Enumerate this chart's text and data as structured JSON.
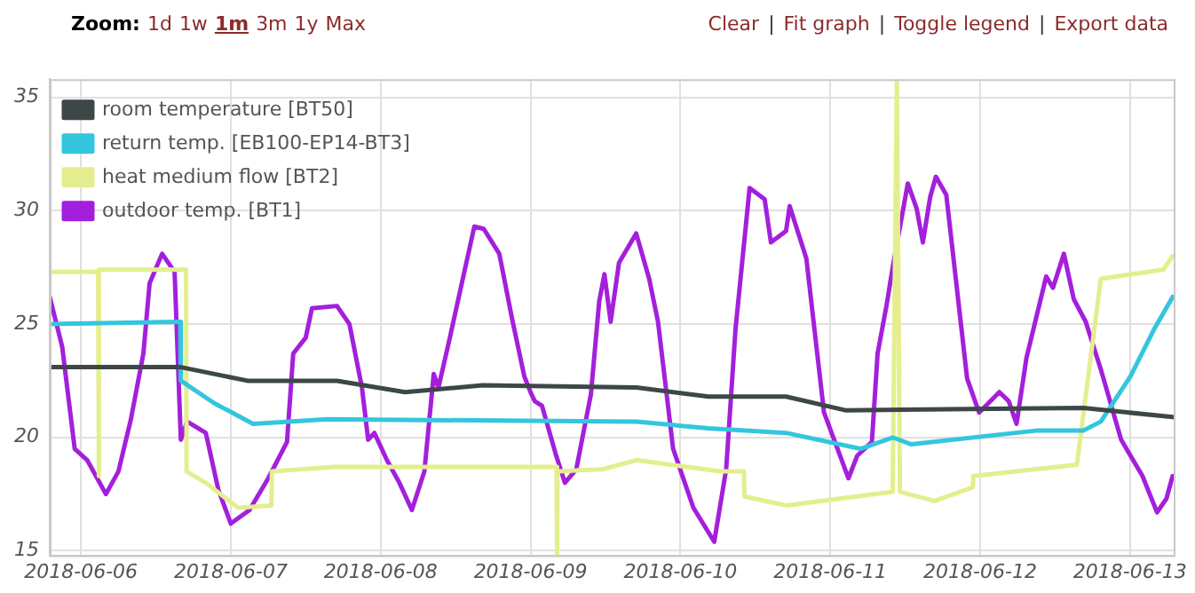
{
  "chart_data": {
    "type": "line",
    "annotations": [
      "Zoom:",
      "1d",
      "1w",
      "1m",
      "3m",
      "1y",
      "Max",
      "Clear",
      "|",
      "Fit graph",
      "|",
      "Toggle legend",
      "|",
      "Export data"
    ],
    "xlim": [
      "2018-06-05T19:00",
      "2018-06-13T07:00"
    ],
    "xticks": [
      "2018-06-06",
      "2018-06-07",
      "2018-06-08",
      "2018-06-09",
      "2018-06-10",
      "2018-06-11",
      "2018-06-12",
      "2018-06-13"
    ],
    "ylim": [
      14.8,
      35.8
    ],
    "yticks": [
      15,
      20,
      25,
      30,
      35
    ],
    "grid": true,
    "legend": "top left",
    "marker": "none",
    "line_style": "solid",
    "series": [
      {
        "name": "room temperature [BT50]",
        "color": "#3d4747",
        "x": [
          "2018-06-05T19:00",
          "2018-06-06T16:00",
          "2018-06-07T02:40",
          "2018-06-07T17:00",
          "2018-06-08T03:55",
          "2018-06-08T16:20",
          "2018-06-09T17:00",
          "2018-06-10T04:30",
          "2018-06-10T16:55",
          "2018-06-11T02:25",
          "2018-06-12T16:30",
          "2018-06-13T06:50"
        ],
        "values": [
          23.1,
          23.1,
          22.5,
          22.5,
          22.0,
          22.3,
          22.2,
          21.8,
          21.8,
          21.2,
          21.3,
          20.9
        ]
      },
      {
        "name": "return temp. [EB100-EP14-BT3]",
        "color": "#33c6dd",
        "x": [
          "2018-06-05T19:00",
          "2018-06-06T15:55",
          "2018-06-06T16:00",
          "2018-06-06T21:25",
          "2018-06-07T03:35",
          "2018-06-07T15:30",
          "2018-06-09T17:00",
          "2018-06-10T04:30",
          "2018-06-10T16:55",
          "2018-06-11T04:50",
          "2018-06-11T10:00",
          "2018-06-11T12:55",
          "2018-06-12T08:55",
          "2018-06-12T16:30",
          "2018-06-12T19:20",
          "2018-06-13T00:05",
          "2018-06-13T03:55",
          "2018-06-13T06:50"
        ],
        "values": [
          25.0,
          25.1,
          22.5,
          21.5,
          20.6,
          20.8,
          20.7,
          20.4,
          20.2,
          19.5,
          20.0,
          19.7,
          20.3,
          20.3,
          20.7,
          22.7,
          24.8,
          26.2
        ]
      },
      {
        "name": "heat medium flow [BT2]",
        "color": "#e4ee8e",
        "x": [
          "2018-06-05T19:00",
          "2018-06-06T02:45",
          "2018-06-06T02:50",
          "2018-06-06T02:55",
          "2018-06-06T16:50",
          "2018-06-06T16:55",
          "2018-06-06T20:00",
          "2018-06-07T01:10",
          "2018-06-07T06:30",
          "2018-06-07T06:35",
          "2018-06-07T16:30",
          "2018-06-09T04:10",
          "2018-06-09T04:15",
          "2018-06-09T04:20",
          "2018-06-09T11:35",
          "2018-06-09T17:00",
          "2018-06-10T06:25",
          "2018-06-10T10:10",
          "2018-06-10T10:15",
          "2018-06-10T16:55",
          "2018-06-11T10:00",
          "2018-06-11T10:40",
          "2018-06-11T11:10",
          "2018-06-11T16:40",
          "2018-06-11T22:50",
          "2018-06-11T22:55",
          "2018-06-12T15:30",
          "2018-06-12T19:20",
          "2018-06-13T05:20",
          "2018-06-13T06:50"
        ],
        "values": [
          27.3,
          27.3,
          18.3,
          27.4,
          27.4,
          18.5,
          18.0,
          16.9,
          17.0,
          18.5,
          18.7,
          18.7,
          14.8,
          18.5,
          18.6,
          19.0,
          18.5,
          18.5,
          17.4,
          17.0,
          17.6,
          35.8,
          17.6,
          17.2,
          17.8,
          18.3,
          18.8,
          27.0,
          27.4,
          28.0
        ]
      },
      {
        "name": "outdoor temp. [BT1]",
        "color": "#a41fdc",
        "x": [
          "2018-06-05T19:00",
          "2018-06-05T21:00",
          "2018-06-05T23:00",
          "2018-06-06T01:00",
          "2018-06-06T04:00",
          "2018-06-06T06:00",
          "2018-06-06T08:00",
          "2018-06-06T10:00",
          "2018-06-06T11:00",
          "2018-06-06T13:00",
          "2018-06-06T15:00",
          "2018-06-06T16:00",
          "2018-06-06T17:00",
          "2018-06-06T20:00",
          "2018-06-06T22:00",
          "2018-06-07T00:00",
          "2018-06-07T03:00",
          "2018-06-07T06:00",
          "2018-06-07T09:00",
          "2018-06-07T10:00",
          "2018-06-07T12:00",
          "2018-06-07T13:00",
          "2018-06-07T17:00",
          "2018-06-07T19:00",
          "2018-06-07T21:00",
          "2018-06-07T22:00",
          "2018-06-07T23:00",
          "2018-06-08T01:00",
          "2018-06-08T03:00",
          "2018-06-08T05:00",
          "2018-06-08T07:00",
          "2018-06-08T08:30",
          "2018-06-08T09:15",
          "2018-06-08T11:00",
          "2018-06-08T13:00",
          "2018-06-08T15:00",
          "2018-06-08T16:30",
          "2018-06-08T19:00",
          "2018-06-08T21:00",
          "2018-06-08T23:00",
          "2018-06-09T00:00",
          "2018-06-09T00:40",
          "2018-06-09T01:50",
          "2018-06-09T04:00",
          "2018-06-09T05:30",
          "2018-06-09T07:20",
          "2018-06-09T09:40",
          "2018-06-09T11:00",
          "2018-06-09T11:50",
          "2018-06-09T12:50",
          "2018-06-09T14:10",
          "2018-06-09T16:55",
          "2018-06-09T19:00",
          "2018-06-09T20:25",
          "2018-06-09T22:50",
          "2018-06-10T02:05",
          "2018-06-10T05:25",
          "2018-06-10T07:20",
          "2018-06-10T08:50",
          "2018-06-10T11:05",
          "2018-06-10T13:30",
          "2018-06-10T14:30",
          "2018-06-10T16:55",
          "2018-06-10T17:30",
          "2018-06-10T20:10",
          "2018-06-10T23:00",
          "2018-06-11T02:55",
          "2018-06-11T04:20",
          "2018-06-11T06:40",
          "2018-06-11T07:35",
          "2018-06-11T09:00",
          "2018-06-11T10:00",
          "2018-06-11T12:25",
          "2018-06-11T13:50",
          "2018-06-11T14:50",
          "2018-06-11T16:00",
          "2018-06-11T16:55",
          "2018-06-11T18:35",
          "2018-06-11T21:55",
          "2018-06-11T23:50",
          "2018-06-12T03:05",
          "2018-06-12T04:35",
          "2018-06-12T05:50",
          "2018-06-12T07:25",
          "2018-06-12T10:35",
          "2018-06-12T11:40",
          "2018-06-12T13:25",
          "2018-06-12T15:00",
          "2018-06-12T16:55",
          "2018-06-12T19:20",
          "2018-06-12T22:35",
          "2018-06-13T02:00",
          "2018-06-13T04:20",
          "2018-06-13T05:50",
          "2018-06-13T06:50"
        ],
        "values": [
          26.2,
          24.0,
          19.5,
          19.0,
          17.5,
          18.5,
          20.8,
          23.7,
          26.8,
          28.1,
          27.3,
          19.9,
          20.7,
          20.2,
          17.7,
          16.2,
          16.8,
          18.2,
          19.8,
          23.7,
          24.4,
          25.7,
          25.8,
          25.0,
          22.2,
          19.9,
          20.2,
          19.0,
          18.0,
          16.8,
          18.5,
          22.8,
          22.2,
          24.3,
          26.8,
          29.3,
          29.2,
          28.1,
          25.3,
          22.7,
          22.0,
          21.6,
          21.4,
          19.3,
          18.0,
          18.6,
          21.9,
          26.0,
          27.2,
          25.1,
          27.7,
          29.0,
          27.0,
          25.1,
          19.5,
          16.9,
          15.4,
          18.6,
          24.8,
          31.0,
          30.5,
          28.6,
          29.1,
          30.2,
          27.9,
          21.1,
          18.2,
          19.2,
          19.8,
          23.7,
          25.8,
          27.5,
          31.2,
          30.1,
          28.6,
          30.6,
          31.5,
          30.7,
          22.6,
          21.1,
          22.0,
          21.6,
          20.6,
          23.5,
          27.1,
          26.6,
          28.1,
          26.1,
          25.1,
          23.0,
          19.9,
          18.3,
          16.7,
          17.3,
          18.3
        ]
      }
    ]
  }
}
